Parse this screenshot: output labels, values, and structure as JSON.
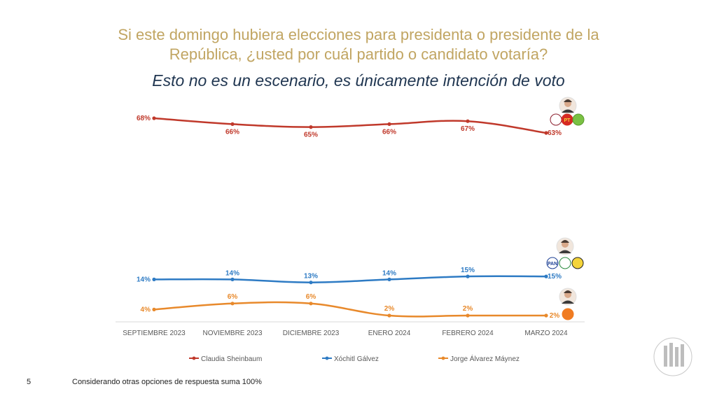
{
  "header": {
    "title_line1": "Si este domingo hubiera elecciones para presidenta o presidente de la",
    "title_line2": "República, ¿usted por cuál partido o candidato votaría?",
    "subtitle": "Esto no es un escenario, es únicamente intención de voto"
  },
  "footer": {
    "page_number": "5",
    "note": "Considerando otras opciones de respuesta suma 100%"
  },
  "colors": {
    "title": "#c1a562",
    "subtitle": "#1f3550",
    "sheinbaum": "#c0392b",
    "galvez": "#2e7bc4",
    "maynez": "#e8892b"
  },
  "chart_data": {
    "type": "line",
    "categories": [
      "SEPTIEMBRE 2023",
      "NOVIEMBRE 2023",
      "DICIEMBRE 2023",
      "ENERO 2024",
      "FEBRERO 2024",
      "MARZO 2024"
    ],
    "series": [
      {
        "name": "Claudia Sheinbaum",
        "values": [
          68,
          66,
          65,
          66,
          67,
          63
        ],
        "labels": [
          "68%",
          "66%",
          "65%",
          "66%",
          "67%",
          "63%"
        ],
        "color": "#c0392b"
      },
      {
        "name": "Xóchitl Gálvez",
        "values": [
          14,
          14,
          13,
          14,
          15,
          15
        ],
        "labels": [
          "14%",
          "14%",
          "13%",
          "14%",
          "15%",
          "15%"
        ],
        "color": "#2e7bc4"
      },
      {
        "name": "Jorge Álvarez Máynez",
        "values": [
          4,
          6,
          6,
          2,
          2,
          2
        ],
        "labels": [
          "4%",
          "6%",
          "6%",
          "2%",
          "2%",
          "2%"
        ],
        "color": "#e8892b"
      }
    ],
    "legend_position": "bottom",
    "grid": false,
    "party_logos": {
      "sheinbaum": [
        "morena",
        "PT",
        "verde"
      ],
      "galvez": [
        "PAN",
        "PRI",
        "PRD"
      ],
      "maynez": [
        "MC"
      ]
    }
  }
}
